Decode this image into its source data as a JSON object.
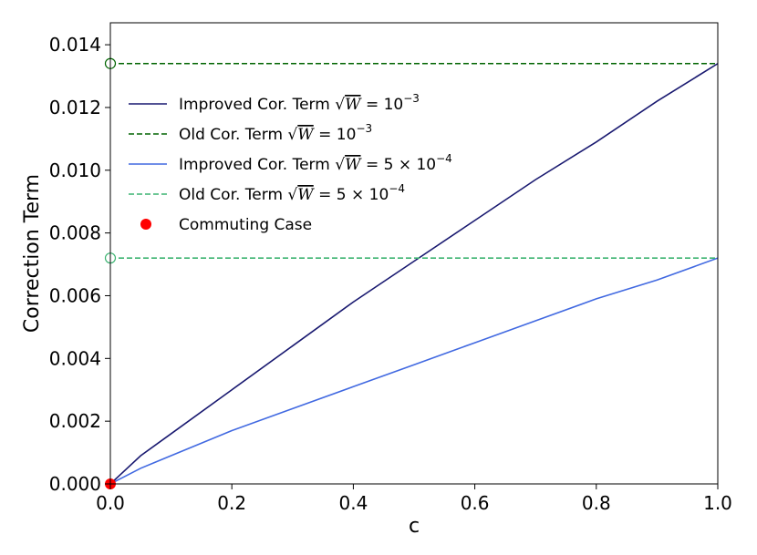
{
  "chart_data": {
    "type": "line",
    "title": "",
    "xlabel": "c",
    "ylabel": "Correction Term",
    "xlim": [
      0.0,
      1.0
    ],
    "ylim": [
      0.0,
      0.0147
    ],
    "xticks": [
      0.0,
      0.2,
      0.4,
      0.6,
      0.8,
      1.0
    ],
    "xtick_labels": [
      "0.0",
      "0.2",
      "0.4",
      "0.6",
      "0.8",
      "1.0"
    ],
    "yticks": [
      0.0,
      0.002,
      0.004,
      0.006,
      0.008,
      0.01,
      0.012,
      0.014
    ],
    "ytick_labels": [
      "0.000",
      "0.002",
      "0.004",
      "0.006",
      "0.008",
      "0.010",
      "0.012",
      "0.014"
    ],
    "grid": false,
    "legend_position": "upper-left",
    "series": [
      {
        "name": "Improved Cor. Term √W = 10⁻³",
        "style": "solid",
        "color": "#191970",
        "x": [
          0.0,
          0.05,
          0.1,
          0.2,
          0.3,
          0.4,
          0.5,
          0.6,
          0.7,
          0.8,
          0.9,
          1.0
        ],
        "y": [
          0.0,
          0.0009,
          0.0016,
          0.003,
          0.0044,
          0.0058,
          0.0071,
          0.0084,
          0.0097,
          0.0109,
          0.0122,
          0.0134
        ]
      },
      {
        "name": "Old Cor. Term √W = 10⁻³",
        "style": "dashed",
        "color": "#006400",
        "x": [
          0.0,
          1.0
        ],
        "y": [
          0.0134,
          0.0134
        ]
      },
      {
        "name": "Improved Cor. Term √W = 5 × 10⁻⁴",
        "style": "solid",
        "color": "#4169E1",
        "x": [
          0.0,
          0.05,
          0.1,
          0.2,
          0.3,
          0.4,
          0.5,
          0.6,
          0.7,
          0.8,
          0.9,
          1.0
        ],
        "y": [
          0.0,
          0.0005,
          0.0009,
          0.0017,
          0.0024,
          0.0031,
          0.0038,
          0.0045,
          0.0052,
          0.0059,
          0.0065,
          0.0072
        ]
      },
      {
        "name": "Old Cor. Term √W = 5 × 10⁻⁴",
        "style": "dashed",
        "color": "#3CB371",
        "x": [
          0.0,
          1.0
        ],
        "y": [
          0.0072,
          0.0072
        ]
      }
    ],
    "markers": [
      {
        "name": "Commuting Case",
        "x": 0.0,
        "y": 0.0,
        "color": "#FF0000",
        "filled": true
      },
      {
        "x": 0.0,
        "y": 0.0134,
        "color": "#006400",
        "filled": false
      },
      {
        "x": 0.0,
        "y": 0.0072,
        "color": "#3CB371",
        "filled": false
      }
    ],
    "legend": {
      "entries": [
        {
          "text": "Improved Cor. Term ",
          "base": "W",
          "rhs": "10",
          "exp": "−3",
          "factor": ""
        },
        {
          "text": "Old Cor. Term ",
          "base": "W",
          "rhs": "10",
          "exp": "−3",
          "factor": ""
        },
        {
          "text": "Improved Cor. Term ",
          "base": "W",
          "rhs": "10",
          "exp": "−4",
          "factor": "5 × "
        },
        {
          "text": "Old Cor. Term ",
          "base": "W",
          "rhs": "10",
          "exp": "−4",
          "factor": "5 × "
        },
        {
          "text": "Commuting Case",
          "base": "",
          "rhs": "",
          "exp": "",
          "factor": ""
        }
      ]
    }
  }
}
